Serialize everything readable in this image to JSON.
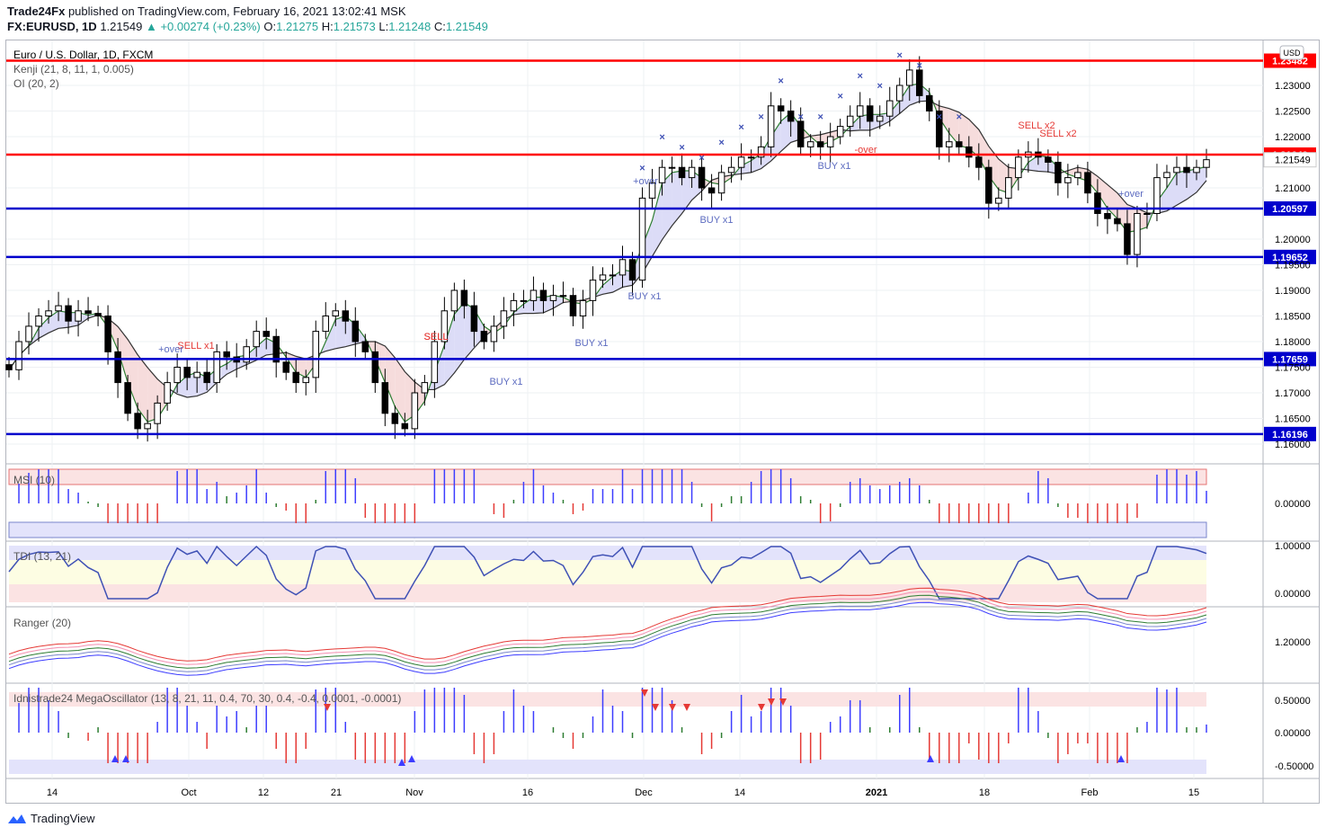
{
  "header": {
    "publisher": "Trade24Fx",
    "published_text": "published on TradingView.com, February 16, 2021 13:02:41 MSK",
    "symbol": "FX:EURUSD, 1D",
    "last": "1.21549",
    "change": "+0.00274 (+0.23%)",
    "o_label": "O:",
    "o": "1.21275",
    "h_label": "H:",
    "h": "1.21573",
    "l_label": "L:",
    "l": "1.21248",
    "c_label": "C:",
    "c": "1.21549"
  },
  "main_pane": {
    "title": "Euro / U.S. Dollar, 1D, FXCM",
    "ind1": "Kenji (21, 8, 11, 1, 0.005)",
    "ind2": "OI (20, 2)",
    "currency": "USD"
  },
  "panes": {
    "msi": "MSI (10)",
    "tdi": "TDI (13, 21)",
    "ranger": "Ranger (20)",
    "mega": "Idnistrade24 MegaOscillator (13, 8, 21, 11, 0.4, 70, 30, 0.4, -0.4, 0.0001, -0.0001)"
  },
  "footer": {
    "brand": "TradingView"
  },
  "colors": {
    "up": "#ffffff",
    "down": "#000000",
    "red_line": "#ff0000",
    "blue_line": "#0000cc",
    "green": "#2e7d32"
  },
  "chart_data": {
    "type": "candlestick",
    "y_axis_ticks": [
      "1.23000",
      "1.22500",
      "1.22000",
      "1.21549",
      "1.21000",
      "1.20000",
      "1.19500",
      "1.19000",
      "1.18500",
      "1.18000",
      "1.17500",
      "1.17000",
      "1.16500",
      "1.16000"
    ],
    "x_axis_ticks": [
      "14",
      "Oct",
      "12",
      "21",
      "Nov",
      "16",
      "Dec",
      "14",
      "2021",
      "18",
      "Feb",
      "15"
    ],
    "levels": [
      {
        "value": 1.23482,
        "label": "1.23482",
        "color": "#ff0000"
      },
      {
        "value": 1.21649,
        "label": "1.21649",
        "color": "#ff0000"
      },
      {
        "value": 1.20597,
        "label": "1.20597",
        "color": "#0000cc"
      },
      {
        "value": 1.19652,
        "label": "1.19652",
        "color": "#0000cc"
      },
      {
        "value": 1.17659,
        "label": "1.17659",
        "color": "#0000cc"
      },
      {
        "value": 1.16196,
        "label": "1.16196",
        "color": "#0000cc"
      }
    ],
    "last_price_label": "1.21549",
    "closes": [
      1.1745,
      1.18,
      1.183,
      1.185,
      1.186,
      1.187,
      1.184,
      1.186,
      1.1855,
      1.185,
      1.178,
      1.172,
      1.166,
      1.163,
      1.164,
      1.168,
      1.172,
      1.175,
      1.173,
      1.174,
      1.172,
      1.178,
      1.177,
      1.176,
      1.179,
      1.182,
      1.181,
      1.176,
      1.174,
      1.172,
      1.173,
      1.182,
      1.185,
      1.186,
      1.184,
      1.18,
      1.178,
      1.172,
      1.166,
      1.164,
      1.163,
      1.17,
      1.172,
      1.18,
      1.186,
      1.19,
      1.187,
      1.182,
      1.18,
      1.183,
      1.186,
      1.188,
      1.188,
      1.19,
      1.188,
      1.189,
      1.189,
      1.185,
      1.188,
      1.192,
      1.193,
      1.193,
      1.196,
      1.192,
      1.208,
      1.211,
      1.214,
      1.214,
      1.212,
      1.214,
      1.21,
      1.209,
      1.213,
      1.214,
      1.216,
      1.216,
      1.218,
      1.226,
      1.225,
      1.223,
      1.218,
      1.219,
      1.218,
      1.22,
      1.222,
      1.224,
      1.226,
      1.223,
      1.224,
      1.227,
      1.23,
      1.233,
      1.228,
      1.225,
      1.218,
      1.219,
      1.218,
      1.216,
      1.214,
      1.207,
      1.208,
      1.212,
      1.216,
      1.217,
      1.216,
      1.215,
      1.211,
      1.212,
      1.213,
      1.209,
      1.205,
      1.204,
      1.203,
      1.197,
      1.205,
      1.205,
      1.212,
      1.213,
      1.214,
      1.213,
      1.214,
      1.2155
    ],
    "kenji_direction": "green-over-red",
    "signals": [
      "SELL",
      "SELL x1",
      "+over",
      "BUY x1",
      "SELL",
      "BUY x1",
      "BUY x1",
      "+over",
      "BUY x1",
      "BUY x1",
      "-over",
      "SELL x2",
      "SELL x2",
      "+over"
    ],
    "panes": [
      {
        "name": "MSI (10)",
        "ticks": [
          "0.00000"
        ]
      },
      {
        "name": "TDI (13, 21)",
        "ticks": [
          "1.00000",
          "0.00000"
        ]
      },
      {
        "name": "Ranger (20)",
        "ticks": [
          "1.20000"
        ]
      },
      {
        "name": "Idnistrade24 MegaOscillator",
        "ticks": [
          "0.50000",
          "0.00000",
          "-0.50000"
        ]
      }
    ]
  }
}
